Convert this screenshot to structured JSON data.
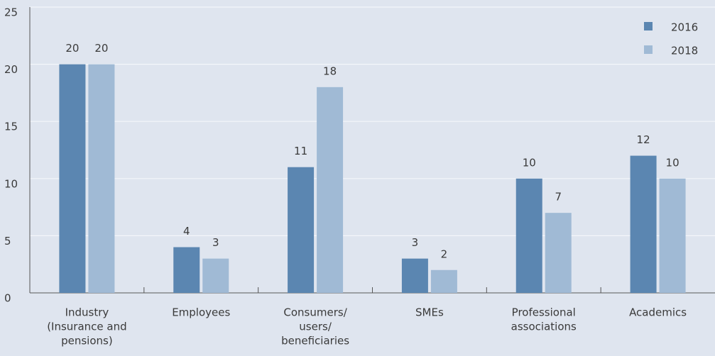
{
  "chart_data": {
    "type": "bar",
    "categories": [
      [
        "Industry",
        "(Insurance and",
        "pensions)"
      ],
      [
        "Employees"
      ],
      [
        "Consumers/",
        "users/",
        "beneficiaries"
      ],
      [
        "SMEs"
      ],
      [
        "Professional",
        "associations"
      ],
      [
        "Academics"
      ]
    ],
    "series": [
      {
        "name": "2016",
        "color": "#5b86b1",
        "values": [
          20,
          4,
          11,
          3,
          10,
          12
        ]
      },
      {
        "name": "2018",
        "color": "#a0bad5",
        "values": [
          20,
          3,
          18,
          2,
          7,
          10
        ]
      }
    ],
    "ylim": [
      0,
      25
    ],
    "yticks": [
      0,
      5,
      10,
      15,
      20,
      25
    ],
    "grid": true,
    "legend": "top-right"
  }
}
